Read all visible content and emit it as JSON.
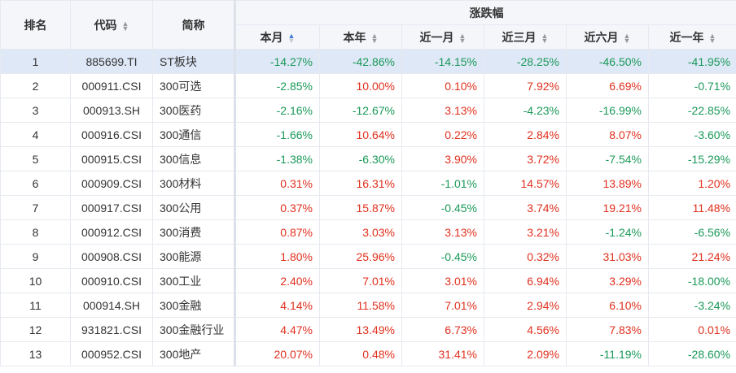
{
  "headers": {
    "rank": "排名",
    "code": "代码",
    "name": "简称",
    "group": "涨跌幅",
    "periods": [
      "本月",
      "本年",
      "近一月",
      "近三月",
      "近六月",
      "近一年"
    ]
  },
  "rows": [
    {
      "rank": "1",
      "code": "885699.TI",
      "name": "ST板块",
      "vals": [
        "-14.27%",
        "-42.86%",
        "-14.15%",
        "-28.25%",
        "-46.50%",
        "-41.95%"
      ]
    },
    {
      "rank": "2",
      "code": "000911.CSI",
      "name": "300可选",
      "vals": [
        "-2.85%",
        "10.00%",
        "0.10%",
        "7.92%",
        "6.69%",
        "-0.71%"
      ]
    },
    {
      "rank": "3",
      "code": "000913.SH",
      "name": "300医药",
      "vals": [
        "-2.16%",
        "-12.67%",
        "3.13%",
        "-4.23%",
        "-16.99%",
        "-22.85%"
      ]
    },
    {
      "rank": "4",
      "code": "000916.CSI",
      "name": "300通信",
      "vals": [
        "-1.66%",
        "10.64%",
        "0.22%",
        "2.84%",
        "8.07%",
        "-3.60%"
      ]
    },
    {
      "rank": "5",
      "code": "000915.CSI",
      "name": "300信息",
      "vals": [
        "-1.38%",
        "-6.30%",
        "3.90%",
        "3.72%",
        "-7.54%",
        "-15.29%"
      ]
    },
    {
      "rank": "6",
      "code": "000909.CSI",
      "name": "300材料",
      "vals": [
        "0.31%",
        "16.31%",
        "-1.01%",
        "14.57%",
        "13.89%",
        "1.20%"
      ]
    },
    {
      "rank": "7",
      "code": "000917.CSI",
      "name": "300公用",
      "vals": [
        "0.37%",
        "15.87%",
        "-0.45%",
        "3.74%",
        "19.21%",
        "11.48%"
      ]
    },
    {
      "rank": "8",
      "code": "000912.CSI",
      "name": "300消费",
      "vals": [
        "0.87%",
        "3.03%",
        "3.13%",
        "3.21%",
        "-1.24%",
        "-6.56%"
      ]
    },
    {
      "rank": "9",
      "code": "000908.CSI",
      "name": "300能源",
      "vals": [
        "1.80%",
        "25.96%",
        "-0.45%",
        "0.32%",
        "31.03%",
        "21.24%"
      ]
    },
    {
      "rank": "10",
      "code": "000910.CSI",
      "name": "300工业",
      "vals": [
        "2.40%",
        "7.01%",
        "3.01%",
        "6.94%",
        "3.29%",
        "-18.00%"
      ]
    },
    {
      "rank": "11",
      "code": "000914.SH",
      "name": "300金融",
      "vals": [
        "4.14%",
        "11.58%",
        "7.01%",
        "2.94%",
        "6.10%",
        "-3.24%"
      ]
    },
    {
      "rank": "12",
      "code": "931821.CSI",
      "name": "300金融行业",
      "vals": [
        "4.47%",
        "13.49%",
        "6.73%",
        "4.56%",
        "7.83%",
        "0.01%"
      ]
    },
    {
      "rank": "13",
      "code": "000952.CSI",
      "name": "300地产",
      "vals": [
        "20.07%",
        "0.48%",
        "31.41%",
        "2.09%",
        "-11.19%",
        "-28.60%"
      ]
    }
  ],
  "selected_row": "1",
  "active_sort": {
    "column": "本月",
    "direction": "ascending"
  },
  "colors": {
    "up": "#e0301e",
    "down": "#1a9959",
    "selected_bg": "#dfe8f7",
    "header_bg": "#f5f6fa",
    "sort_active": "#3a7bd5"
  }
}
